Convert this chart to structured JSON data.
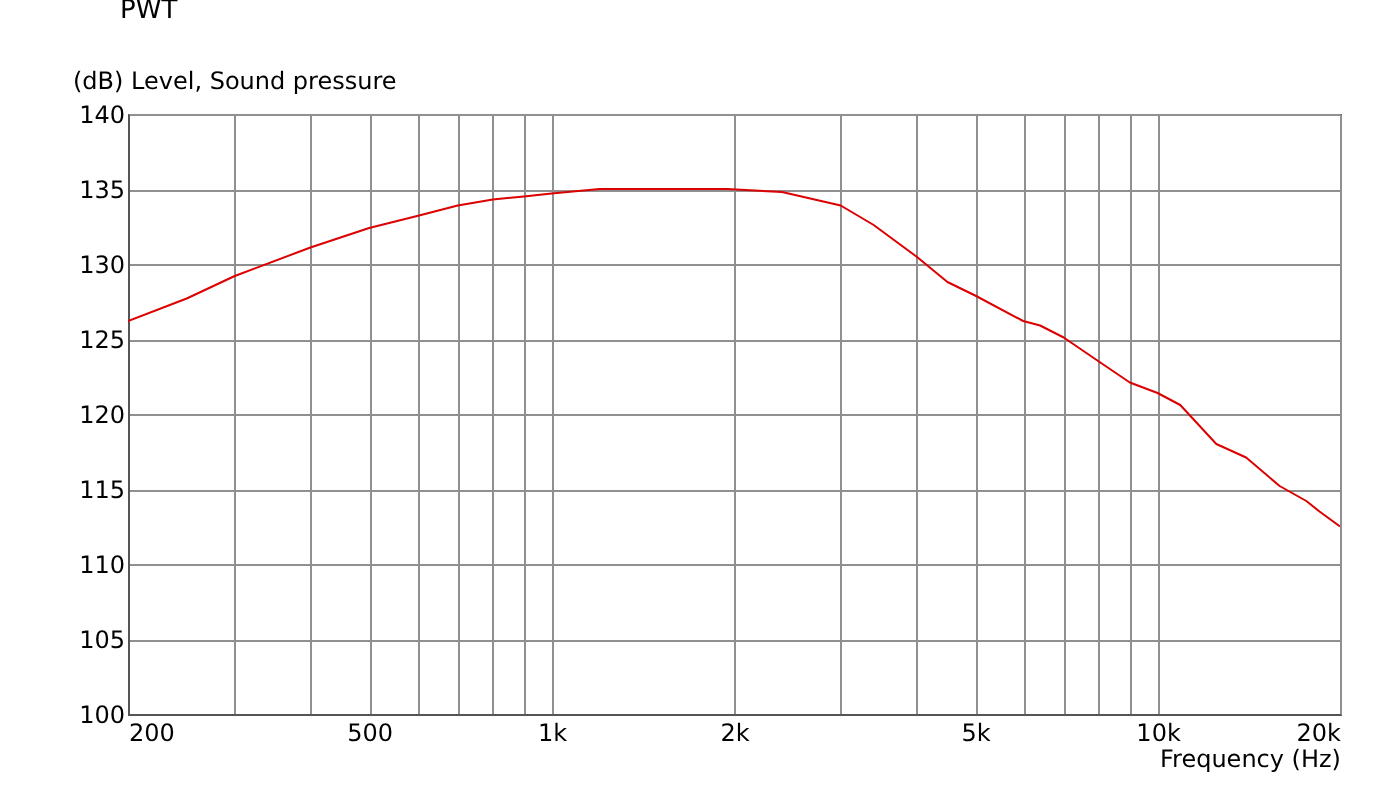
{
  "chart_data": {
    "type": "line",
    "title": "PWT",
    "ylabel": "(dB)  Level, Sound pressure",
    "xlabel": "Frequency  (Hz)",
    "log": "x",
    "grid": true,
    "legend": false,
    "marker": "none",
    "line_style": "solid",
    "xlim": [
      200,
      20000
    ],
    "ylim": [
      100,
      140
    ],
    "xticks": [
      200,
      {
        "value": 300,
        "label": null
      },
      {
        "value": 400,
        "label": null
      },
      500,
      {
        "value": 600,
        "label": null
      },
      {
        "value": 700,
        "label": null
      },
      {
        "value": 800,
        "label": null
      },
      {
        "value": 900,
        "label": null
      },
      {
        "value": 1000,
        "label": "1k"
      },
      {
        "value": 2000,
        "label": "2k"
      },
      {
        "value": 3000,
        "label": null
      },
      {
        "value": 4000,
        "label": null
      },
      {
        "value": 5000,
        "label": "5k"
      },
      {
        "value": 6000,
        "label": null
      },
      {
        "value": 7000,
        "label": null
      },
      {
        "value": 8000,
        "label": null
      },
      {
        "value": 9000,
        "label": null
      },
      {
        "value": 10000,
        "label": "10k"
      },
      {
        "value": 20000,
        "label": "20k"
      }
    ],
    "yticks": [
      100,
      105,
      110,
      115,
      120,
      125,
      130,
      135,
      140
    ],
    "series": [
      {
        "color": "#dd0000",
        "x": [
          200,
          250,
          300,
          400,
          500,
          600,
          700,
          800,
          900,
          1000,
          1200,
          1950,
          2400,
          3000,
          3400,
          4000,
          4500,
          5000,
          6000,
          6400,
          7000,
          8000,
          9000,
          10000,
          10900,
          12500,
          14000,
          15900,
          17600,
          18500,
          20000
        ],
        "values": [
          126.2,
          127.7,
          129.2,
          131.1,
          132.4,
          133.2,
          133.9,
          134.3,
          134.5,
          134.7,
          135.0,
          135.0,
          134.8,
          133.9,
          132.6,
          130.5,
          128.8,
          127.9,
          126.2,
          125.9,
          125.1,
          123.5,
          122.1,
          121.4,
          120.6,
          118.0,
          117.1,
          115.2,
          114.2,
          113.5,
          112.5
        ]
      }
    ]
  }
}
